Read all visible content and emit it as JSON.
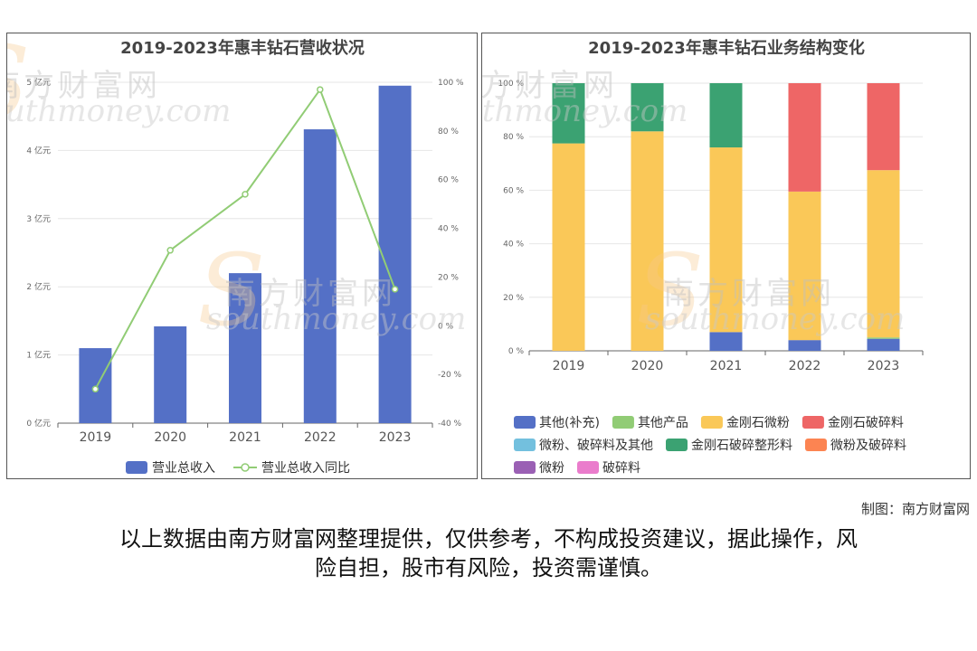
{
  "footer": {
    "credit": "制图：南方财富网",
    "disclaimer_line1": "以上数据由南方财富网整理提供，仅供参考，不构成投资建议，据此操作，风",
    "disclaimer_line2": "险自担，股市有风险，投资需谨慎。"
  },
  "watermark": {
    "cn": "南方财富网",
    "en": "southmoney.com"
  },
  "colors": {
    "bar_blue": "#5470c6",
    "line_green": "#91cc75",
    "yellow": "#fac858",
    "red": "#ee6666",
    "teal": "#73c0de",
    "dark_green": "#3ba272",
    "orange": "#fc8452",
    "purple": "#9a60b4",
    "pink": "#ea7ccc"
  },
  "chart_data": [
    {
      "type": "bar",
      "title": "2019-2023年惠丰钻石营收状况",
      "categories": [
        "2019",
        "2020",
        "2021",
        "2022",
        "2023"
      ],
      "series": [
        {
          "name": "营业总收入",
          "type": "bar",
          "axis": "left",
          "values": [
            1.1,
            1.42,
            2.2,
            4.31,
            4.95
          ]
        },
        {
          "name": "营业总收入同比",
          "type": "line",
          "axis": "right",
          "values": [
            -26,
            31,
            54,
            97,
            15
          ]
        }
      ],
      "y_left": {
        "ticks": [
          "0 亿元",
          "1 亿元",
          "2 亿元",
          "3 亿元",
          "4 亿元",
          "5 亿元"
        ],
        "min": 0,
        "max": 5
      },
      "y_right": {
        "ticks": [
          "-40 %",
          "-20 %",
          "0 %",
          "20 %",
          "40 %",
          "60 %",
          "80 %",
          "100 %"
        ],
        "min": -40,
        "max": 100
      },
      "grid": true,
      "legend": "bottom"
    },
    {
      "type": "bar",
      "stacked": true,
      "title": "2019-2023年惠丰钻石业务结构变化",
      "categories": [
        "2019",
        "2020",
        "2021",
        "2022",
        "2023"
      ],
      "series": [
        {
          "name": "其他(补充)",
          "values": [
            0,
            0,
            7,
            4,
            4.5
          ]
        },
        {
          "name": "其他产品",
          "values": [
            0,
            0,
            0,
            0,
            0.5
          ]
        },
        {
          "name": "金刚石微粉",
          "values": [
            77.5,
            82,
            69,
            55.5,
            62.5
          ]
        },
        {
          "name": "金刚石破碎料",
          "values": [
            0,
            0,
            0,
            40.5,
            32.5
          ]
        },
        {
          "name": "微粉、破碎料及其他",
          "values": [
            0,
            0,
            0,
            0,
            0
          ]
        },
        {
          "name": "金刚石破碎整形料",
          "values": [
            22.5,
            18,
            24,
            0,
            0
          ]
        },
        {
          "name": "微粉及破碎料",
          "values": [
            0,
            0,
            0,
            0,
            0
          ]
        },
        {
          "name": "微粉",
          "values": [
            0,
            0,
            0,
            0,
            0
          ]
        },
        {
          "name": "破碎料",
          "values": [
            0,
            0,
            0,
            0,
            0
          ]
        }
      ],
      "y": {
        "ticks": [
          "0 %",
          "20 %",
          "40 %",
          "60 %",
          "80 %",
          "100 %"
        ],
        "min": 0,
        "max": 100
      },
      "grid": true,
      "legend": "bottom"
    }
  ]
}
